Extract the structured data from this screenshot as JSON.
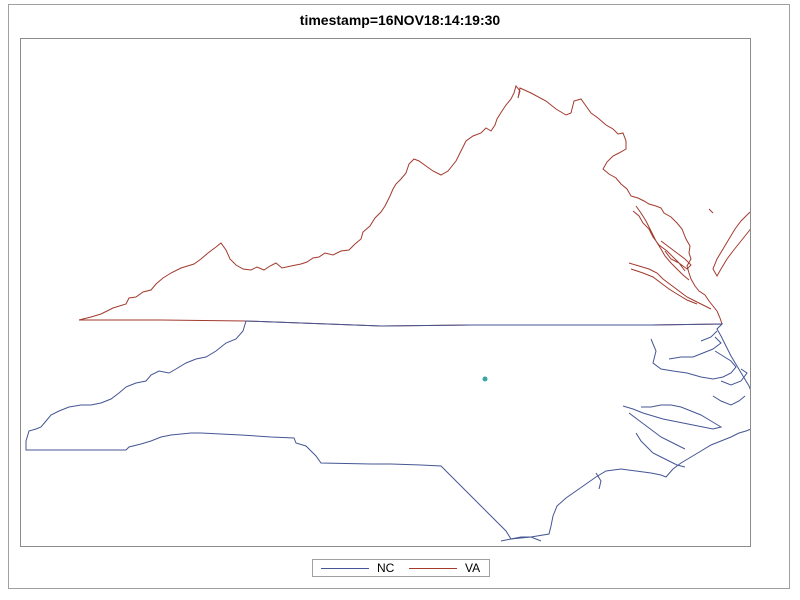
{
  "title": "timestamp=16NOV18:14:19:30",
  "colors": {
    "nc": "#445694",
    "va": "#a23a2e",
    "point": "#3aa7a6"
  },
  "legend": {
    "items": [
      {
        "label": "NC",
        "color": "#445694"
      },
      {
        "label": "VA",
        "color": "#a23a2e"
      }
    ]
  }
}
